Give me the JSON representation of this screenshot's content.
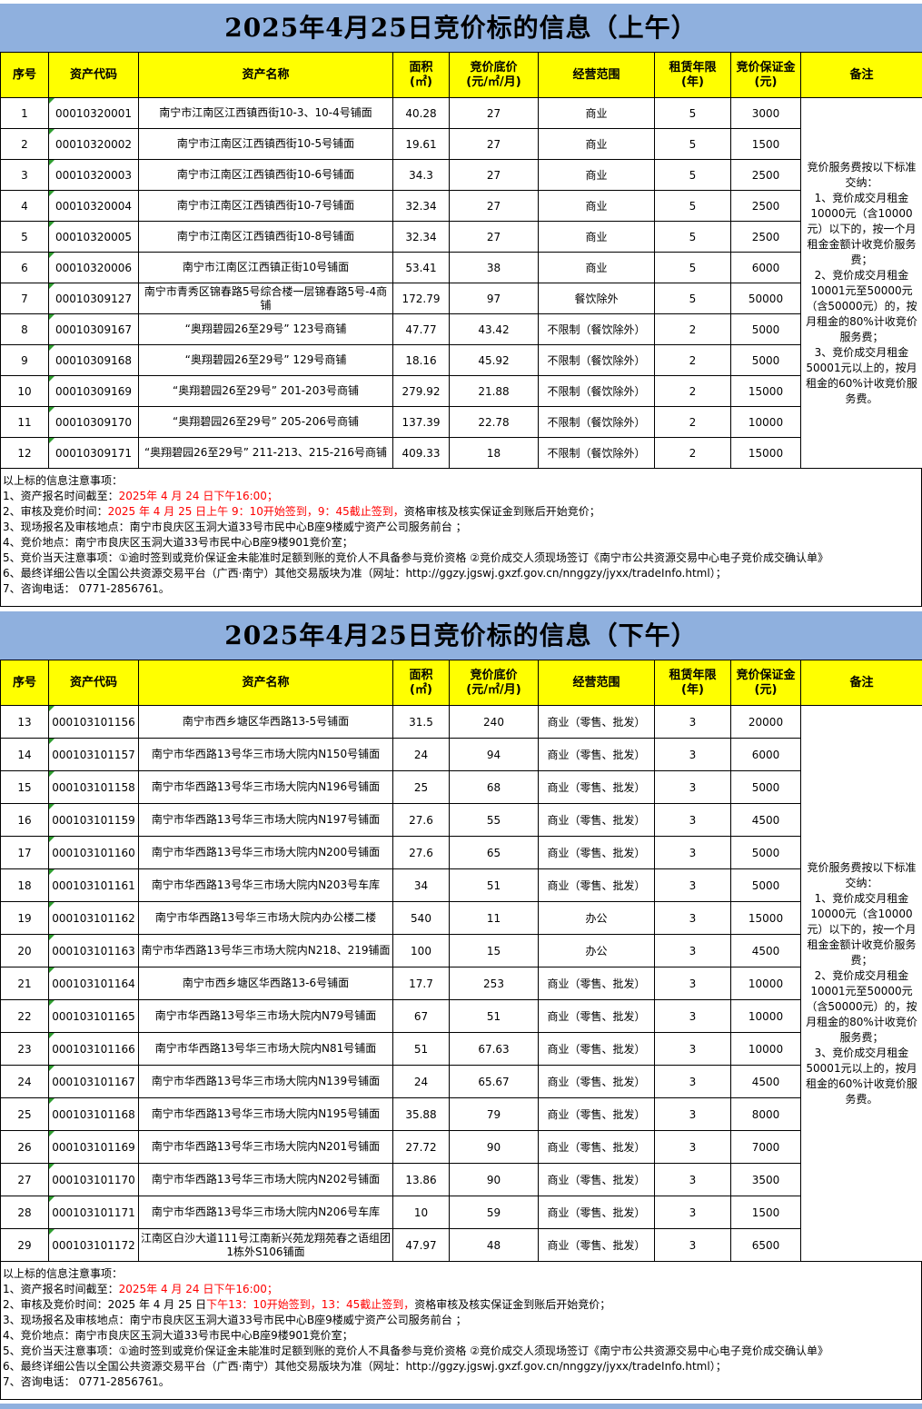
{
  "colors": {
    "header_blue": "#8FB0DE",
    "header_yellow": "#FFFF00",
    "red": "#FF0000",
    "green_marker": "#2F9E30",
    "border": "#000000",
    "page_bg": "#FFFFFF"
  },
  "sections": [
    {
      "title": "2025年4月25日竞价标的信息（上午）",
      "columns": [
        "序号",
        "资产代码",
        "资产名称",
        "面积\n(㎡)",
        "竞价底价\n(元/㎡/月)",
        "经营范围",
        "租赁年限\n(年)",
        "竞价保证金\n(元)",
        "备注"
      ],
      "remark": "竞价服务费按以下标准交纳：\n1、竞价成交月租金10000元（含10000元）以下的，按一个月租金金额计收竞价服务费；\n2、竞价成交月租金10001元至50000元（含50000元）的，按月租金的80%计收竞价服务费；\n3、竞价成交月租金50001元以上的，按月租金的60%计收竞价服务费。",
      "rows": [
        {
          "no": "1",
          "code": "00010320001",
          "name": "南宁市江南区江西镇西街10-3、10-4号铺面",
          "area": "40.28",
          "price": "27",
          "scope": "商业",
          "years": "5",
          "deposit": "3000"
        },
        {
          "no": "2",
          "code": "00010320002",
          "name": "南宁市江南区江西镇西街10-5号铺面",
          "area": "19.61",
          "price": "27",
          "scope": "商业",
          "years": "5",
          "deposit": "1500"
        },
        {
          "no": "3",
          "code": "00010320003",
          "name": "南宁市江南区江西镇西街10-6号铺面",
          "area": "34.3",
          "price": "27",
          "scope": "商业",
          "years": "5",
          "deposit": "2500"
        },
        {
          "no": "4",
          "code": "00010320004",
          "name": "南宁市江南区江西镇西街10-7号铺面",
          "area": "32.34",
          "price": "27",
          "scope": "商业",
          "years": "5",
          "deposit": "2500"
        },
        {
          "no": "5",
          "code": "00010320005",
          "name": "南宁市江南区江西镇西街10-8号铺面",
          "area": "32.34",
          "price": "27",
          "scope": "商业",
          "years": "5",
          "deposit": "2500"
        },
        {
          "no": "6",
          "code": "00010320006",
          "name": "南宁市江南区江西镇正街10号铺面",
          "area": "53.41",
          "price": "38",
          "scope": "商业",
          "years": "5",
          "deposit": "6000"
        },
        {
          "no": "7",
          "code": "00010309127",
          "name": "南宁市青秀区锦春路5号综合楼一层锦春路5号-4商铺",
          "area": "172.79",
          "price": "97",
          "scope": "餐饮除外",
          "years": "5",
          "deposit": "50000"
        },
        {
          "no": "8",
          "code": "00010309167",
          "name": "“奥翔碧园26至29号” 123号商铺",
          "area": "47.77",
          "price": "43.42",
          "scope": "不限制（餐饮除外）",
          "years": "2",
          "deposit": "5000"
        },
        {
          "no": "9",
          "code": "00010309168",
          "name": "“奥翔碧园26至29号” 129号商铺",
          "area": "18.16",
          "price": "45.92",
          "scope": "不限制（餐饮除外）",
          "years": "2",
          "deposit": "5000"
        },
        {
          "no": "10",
          "code": "00010309169",
          "name": "“奥翔碧园26至29号” 201-203号商铺",
          "area": "279.92",
          "price": "21.88",
          "scope": "不限制（餐饮除外）",
          "years": "2",
          "deposit": "15000"
        },
        {
          "no": "11",
          "code": "00010309170",
          "name": "“奥翔碧园26至29号” 205-206号商铺",
          "area": "137.39",
          "price": "22.78",
          "scope": "不限制（餐饮除外）",
          "years": "2",
          "deposit": "10000"
        },
        {
          "no": "12",
          "code": "00010309171",
          "name": "“奥翔碧园26至29号” 211-213、215-216号商铺",
          "area": "409.33",
          "price": "18",
          "scope": "不限制（餐饮除外）",
          "years": "2",
          "deposit": "15000"
        }
      ],
      "notes": [
        [
          {
            "t": "以上标的信息注意事项："
          }
        ],
        [
          {
            "t": "1、资产报名时间截至："
          },
          {
            "t": "2025年 4 月 24 日下午16:00；",
            "red": true
          }
        ],
        [
          {
            "t": "2、审核及竞价时间："
          },
          {
            "t": "2025 年 4 月 25 日上午 9：10开始签到，9：45截止签到，",
            "red": true
          },
          {
            "t": "资格审核及核实保证金到账后开始竞价；"
          }
        ],
        [
          {
            "t": "3、现场报名及审核地点：南宁市良庆区玉洞大道33号市民中心B座9楼威宁资产公司服务前台 ；"
          }
        ],
        [
          {
            "t": "4、竞价地点：南宁市良庆区玉洞大道33号市民中心B座9楼901竞价室；"
          }
        ],
        [
          {
            "t": "5、竞价当天注意事项：①逾时签到或竞价保证金未能准时足额到账的竞价人不具备参与竞价资格 ②竞价成交人须现场签订《南宁市公共资源交易中心电子竞价成交确认单》"
          }
        ],
        [
          {
            "t": "6、最终详细公告以全国公共资源交易平台（广西·南宁）其他交易版块为准（网址：http://ggzy.jgswj.gxzf.gov.cn/nnggzy/jyxx/tradeInfo.html）；"
          }
        ],
        [
          {
            "t": "7、咨询电话： 0771-2856761。"
          }
        ]
      ]
    },
    {
      "title": "2025年4月25日竞价标的信息（下午）",
      "columns": [
        "序号",
        "资产代码",
        "资产名称",
        "面积\n(㎡)",
        "竞价底价\n(元/㎡/月)",
        "经营范围",
        "租赁年限\n(年)",
        "竞价保证金\n(元)",
        "备注"
      ],
      "remark": "竞价服务费按以下标准交纳：\n1、竞价成交月租金10000元（含10000元）以下的，按一个月租金金额计收竞价服务费；\n2、竞价成交月租金10001元至50000元（含50000元）的，按月租金的80%计收竞价服务费；\n3、竞价成交月租金50001元以上的，按月租金的60%计收竞价服务费。",
      "rows": [
        {
          "no": "13",
          "code": "000103101156",
          "name": "南宁市西乡塘区华西路13-5号铺面",
          "area": "31.5",
          "price": "240",
          "scope": "商业（零售、批发）",
          "years": "3",
          "deposit": "20000"
        },
        {
          "no": "14",
          "code": "000103101157",
          "name": "南宁市华西路13号华三市场大院内N150号铺面",
          "area": "24",
          "price": "94",
          "scope": "商业（零售、批发）",
          "years": "3",
          "deposit": "6000"
        },
        {
          "no": "15",
          "code": "000103101158",
          "name": "南宁市华西路13号华三市场大院内N196号铺面",
          "area": "25",
          "price": "68",
          "scope": "商业（零售、批发）",
          "years": "3",
          "deposit": "5000"
        },
        {
          "no": "16",
          "code": "000103101159",
          "name": "南宁市华西路13号华三市场大院内N197号铺面",
          "area": "27.6",
          "price": "55",
          "scope": "商业（零售、批发）",
          "years": "3",
          "deposit": "4500"
        },
        {
          "no": "17",
          "code": "000103101160",
          "name": "南宁市华西路13号华三市场大院内N200号铺面",
          "area": "27.6",
          "price": "65",
          "scope": "商业（零售、批发）",
          "years": "3",
          "deposit": "5000"
        },
        {
          "no": "18",
          "code": "000103101161",
          "name": "南宁市华西路13号华三市场大院内N203号车库",
          "area": "34",
          "price": "51",
          "scope": "商业（零售、批发）",
          "years": "3",
          "deposit": "5000"
        },
        {
          "no": "19",
          "code": "000103101162",
          "name": "南宁市华西路13号华三市场大院内办公楼二楼",
          "area": "540",
          "price": "11",
          "scope": "办公",
          "years": "3",
          "deposit": "15000"
        },
        {
          "no": "20",
          "code": "000103101163",
          "name": "南宁市华西路13号华三市场大院内N218、219铺面",
          "area": "100",
          "price": "15",
          "scope": "办公",
          "years": "3",
          "deposit": "4500"
        },
        {
          "no": "21",
          "code": "000103101164",
          "name": "南宁市西乡塘区华西路13-6号铺面",
          "area": "17.7",
          "price": "253",
          "scope": "商业（零售、批发）",
          "years": "3",
          "deposit": "10000"
        },
        {
          "no": "22",
          "code": "000103101165",
          "name": "南宁市华西路13号华三市场大院内N79号铺面",
          "area": "67",
          "price": "51",
          "scope": "商业（零售、批发）",
          "years": "3",
          "deposit": "10000"
        },
        {
          "no": "23",
          "code": "000103101166",
          "name": "南宁市华西路13号华三市场大院内N81号铺面",
          "area": "51",
          "price": "67.63",
          "scope": "商业（零售、批发）",
          "years": "3",
          "deposit": "10000"
        },
        {
          "no": "24",
          "code": "000103101167",
          "name": "南宁市华西路13号华三市场大院内N139号铺面",
          "area": "24",
          "price": "65.67",
          "scope": "商业（零售、批发）",
          "years": "3",
          "deposit": "4500"
        },
        {
          "no": "25",
          "code": "000103101168",
          "name": "南宁市华西路13号华三市场大院内N195号铺面",
          "area": "35.88",
          "price": "79",
          "scope": "商业（零售、批发）",
          "years": "3",
          "deposit": "8000"
        },
        {
          "no": "26",
          "code": "000103101169",
          "name": "南宁市华西路13号华三市场大院内N201号铺面",
          "area": "27.72",
          "price": "90",
          "scope": "商业（零售、批发）",
          "years": "3",
          "deposit": "7000"
        },
        {
          "no": "27",
          "code": "000103101170",
          "name": "南宁市华西路13号华三市场大院内N202号铺面",
          "area": "13.86",
          "price": "90",
          "scope": "商业（零售、批发）",
          "years": "3",
          "deposit": "3500"
        },
        {
          "no": "28",
          "code": "000103101171",
          "name": "南宁市华西路13号华三市场大院内N206号车库",
          "area": "10",
          "price": "59",
          "scope": "商业（零售、批发）",
          "years": "3",
          "deposit": "1500"
        },
        {
          "no": "29",
          "code": "000103101172",
          "name": "江南区白沙大道111号江南新兴苑龙翔苑春之语组团1栋外S106铺面",
          "area": "47.97",
          "price": "48",
          "scope": "商业（零售、批发）",
          "years": "3",
          "deposit": "6500"
        }
      ],
      "notes": [
        [
          {
            "t": "以上标的信息注意事项："
          }
        ],
        [
          {
            "t": "1、资产报名时间截至："
          },
          {
            "t": "2025年 4 月 24 日下午16:00；",
            "red": true
          }
        ],
        [
          {
            "t": "2、审核及竞价时间：2025 年 4 月 25 日"
          },
          {
            "t": "下午13：10开始签到，13：45截止签到，",
            "red": true
          },
          {
            "t": "资格审核及核实保证金到账后开始竞价；"
          }
        ],
        [
          {
            "t": "3、现场报名及审核地点：南宁市良庆区玉洞大道33号市民中心B座9楼威宁资产公司服务前台 ；"
          }
        ],
        [
          {
            "t": "4、竞价地点：南宁市良庆区玉洞大道33号市民中心B座9楼901竞价室；"
          }
        ],
        [
          {
            "t": "5、竞价当天注意事项：①逾时签到或竞价保证金未能准时足额到账的竞价人不具备参与竞价资格 ②竞价成交人须现场签订《南宁市公共资源交易中心电子竞价成交确认单》"
          }
        ],
        [
          {
            "t": "6、最终详细公告以全国公共资源交易平台（广西·南宁）其他交易版块为准（网址：http://ggzy.jgswj.gxzf.gov.cn/nnggzy/jyxx/tradeInfo.html）；"
          }
        ],
        [
          {
            "t": "7、咨询电话： 0771-2856761。"
          }
        ]
      ]
    }
  ]
}
